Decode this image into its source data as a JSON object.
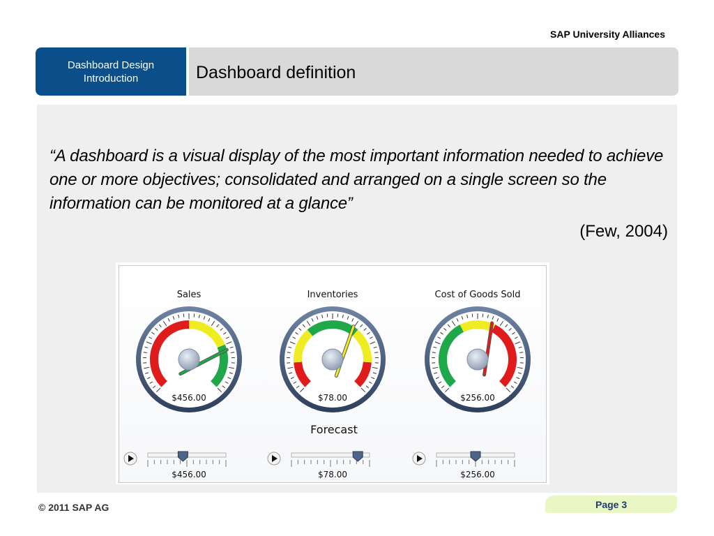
{
  "header": {
    "organization": "SAP University Alliances",
    "section_line1": "Dashboard Design",
    "section_line2": "Introduction",
    "title": "Dashboard definition"
  },
  "quote": {
    "line1": "“A dashboard is a visual display of the most important information needed to achieve",
    "line2": "one or more objectives; consolidated and arranged on a single screen so the",
    "line3": "information can be monitored at a glance”",
    "citation": "(Few, 2004)"
  },
  "dashboard": {
    "forecast_label": "Forecast",
    "gauges": [
      {
        "title": "Sales",
        "value_label": "$456.00",
        "slider_label": "$456.00",
        "needle_level": 0.78,
        "slider_level": 0.45,
        "bands": [
          [
            "#e01b1b",
            0,
            0.5
          ],
          [
            "#f0ec22",
            0.5,
            0.75
          ],
          [
            "#1fa84a",
            0.75,
            1
          ]
        ]
      },
      {
        "title": "Inventories",
        "value_label": "$78.00",
        "slider_label": "$78.00",
        "needle_level": 0.62,
        "slider_level": 0.85,
        "bands": [
          [
            "#e01b1b",
            0,
            0.15
          ],
          [
            "#f0ec22",
            0.15,
            0.35
          ],
          [
            "#1fa84a",
            0.35,
            0.65
          ],
          [
            "#f0ec22",
            0.65,
            0.85
          ],
          [
            "#e01b1b",
            0.85,
            1
          ]
        ]
      },
      {
        "title": "Cost of Goods Sold",
        "value_label": "$256.00",
        "slider_label": "$256.00",
        "needle_level": 0.58,
        "slider_level": 0.5,
        "bands": [
          [
            "#1fa84a",
            0,
            0.4
          ],
          [
            "#f0ec22",
            0.4,
            0.6
          ],
          [
            "#e01b1b",
            0.6,
            1
          ]
        ]
      }
    ]
  },
  "footer": {
    "copyright": "© 2011 SAP AG",
    "page": "Page 3"
  },
  "colors": {
    "brand_blue": "#0b4f8a",
    "header_gray": "#d9d9d9",
    "panel_gray": "#efefef",
    "page_tab": "#eaf6c4"
  }
}
